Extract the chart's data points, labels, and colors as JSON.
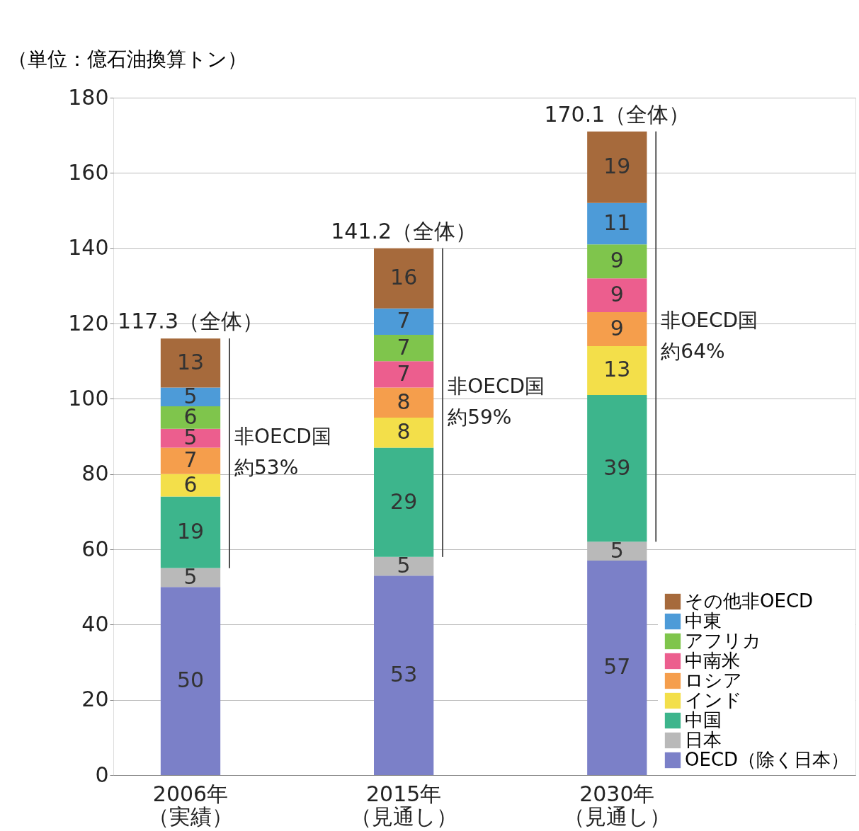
{
  "chart_data": {
    "type": "bar",
    "stacked": true,
    "ylabel": "（単位：億石油換算トン）",
    "categories": [
      "2006年（実績）",
      "2015年（見通し）",
      "2030年（見通し）"
    ],
    "series": [
      {
        "name": "OECD（除く日本）",
        "color": "#7b80c8",
        "values": [
          50,
          53,
          57
        ]
      },
      {
        "name": "日本",
        "color": "#b9b9b9",
        "values": [
          5,
          5,
          5
        ]
      },
      {
        "name": "中国",
        "color": "#3db58c",
        "values": [
          19,
          29,
          39
        ]
      },
      {
        "name": "インド",
        "color": "#f3df4a",
        "values": [
          6,
          8,
          13
        ]
      },
      {
        "name": "ロシア",
        "color": "#f59e4c",
        "values": [
          7,
          8,
          9
        ]
      },
      {
        "name": "中南米",
        "color": "#ec5e8e",
        "values": [
          5,
          7,
          9
        ]
      },
      {
        "name": "アフリカ",
        "color": "#7fc54c",
        "values": [
          6,
          7,
          9
        ]
      },
      {
        "name": "中東",
        "color": "#4d9bd8",
        "values": [
          5,
          7,
          11
        ]
      },
      {
        "name": "その他非OECD",
        "color": "#a66a3c",
        "values": [
          13,
          16,
          19
        ]
      }
    ],
    "ylim": [
      0,
      180
    ],
    "yticks": [
      0,
      20,
      40,
      60,
      80,
      100,
      120,
      140,
      160,
      180
    ],
    "grid": "y",
    "legend": "bottom right",
    "data_labels": true,
    "annotations": [
      "117.3（全体）",
      "141.2（全体）",
      "170.1（全体）",
      "非OECD国",
      "約53%",
      "非OECD国",
      "約59%",
      "非OECD国",
      "約64%"
    ]
  }
}
